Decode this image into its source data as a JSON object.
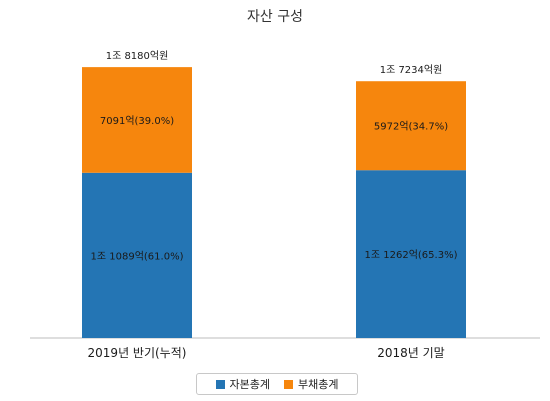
{
  "chart_data": {
    "type": "bar",
    "stacked": true,
    "title": "자산 구성",
    "categories": [
      "2019년 반기(누적)",
      "2018년 기말"
    ],
    "series": [
      {
        "name": "자본총계",
        "color": "#2475b4",
        "values": [
          11089,
          11262
        ],
        "labels": [
          "1조 1089억(61.0%)",
          "1조 1262억(65.3%)"
        ]
      },
      {
        "name": "부채총계",
        "color": "#f6860d",
        "values": [
          7091,
          5972
        ],
        "labels": [
          "7091억(39.0%)",
          "5972억(34.7%)"
        ]
      }
    ],
    "totals": [
      "1조 8180억원",
      "1조 7234억원"
    ],
    "total_values": [
      18180,
      17234
    ],
    "ylim": [
      0,
      20000
    ],
    "grid": false,
    "legend_position": "bottom"
  }
}
